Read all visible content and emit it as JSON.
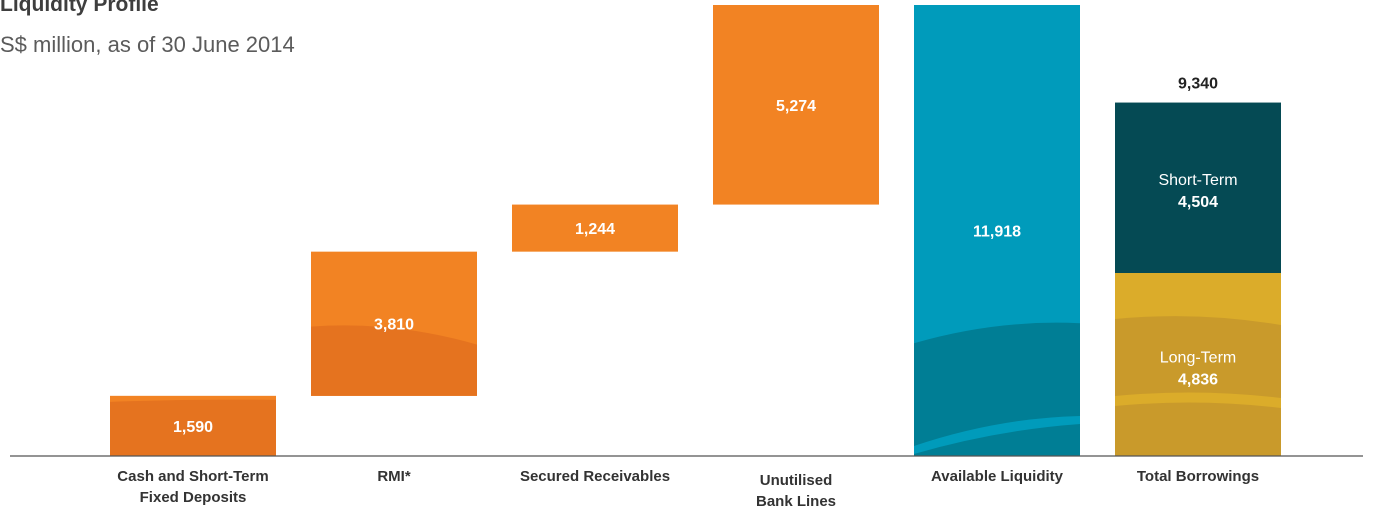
{
  "title": "Liquidity Profile",
  "subtitle": "S$ million, as of 30 June 2014",
  "colors": {
    "orange": "#f28323",
    "orange_dark": "#e5731f",
    "teal": "#009bbb",
    "teal_dark": "#007e95",
    "navy": "#054a54",
    "gold": "#dbac2a",
    "gold_dark": "#c99a2b",
    "axis": "#555555"
  },
  "chart_data": {
    "type": "bar",
    "subtype": "waterfall",
    "title": "Liquidity Profile",
    "subtitle": "S$ million, as of 30 June 2014",
    "categories": [
      "Cash and Short-Term Fixed Deposits",
      "RMI*",
      "Secured Receivables",
      "Unutilised Bank Lines",
      "Available Liquidity",
      "Total Borrowings"
    ],
    "category_lines": [
      [
        "Cash and Short-Term",
        "Fixed Deposits"
      ],
      [
        "RMI*"
      ],
      [
        "Secured Receivables"
      ],
      [
        "Unutilised",
        "Bank Lines"
      ],
      [
        "Available Liquidity"
      ],
      [
        "Total Borrowings"
      ]
    ],
    "waterfall": [
      {
        "category": "Cash and Short-Term Fixed Deposits",
        "base": 0,
        "value": 1590,
        "label": "1,590"
      },
      {
        "category": "RMI*",
        "base": 1590,
        "value": 3810,
        "label": "3,810"
      },
      {
        "category": "Secured Receivables",
        "base": 5400,
        "value": 1244,
        "label": "1,244"
      },
      {
        "category": "Unutilised Bank Lines",
        "base": 6644,
        "value": 5274,
        "label": "5,274"
      },
      {
        "category": "Available Liquidity",
        "base": 0,
        "value": 11918,
        "label": "11,918"
      }
    ],
    "total_borrowings": {
      "category": "Total Borrowings",
      "total": 9340,
      "total_label": "9,340",
      "segments": [
        {
          "name": "Long-Term",
          "value": 4836,
          "label": "4,836"
        },
        {
          "name": "Short-Term",
          "value": 4504,
          "label": "4,504"
        }
      ]
    },
    "ylim": [
      0,
      11918
    ]
  }
}
